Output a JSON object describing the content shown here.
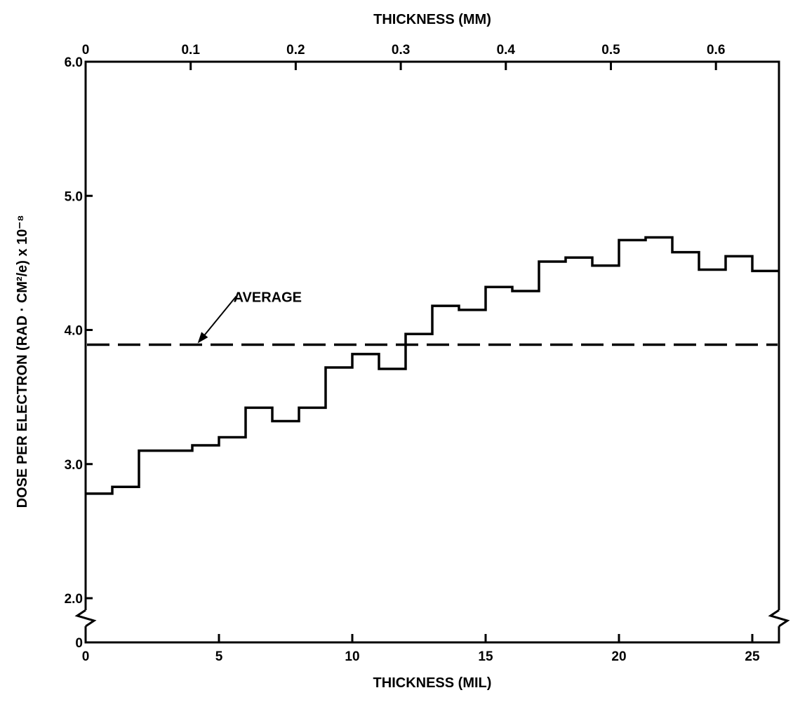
{
  "chart_data": {
    "type": "line",
    "step": true,
    "xlabel": "THICKNESS (MIL)",
    "x2label": "THICKNESS (MM)",
    "ylabel": "DOSE PER ELECTRON (RAD · CM²/e) x 10⁻⁸",
    "xlim": [
      0,
      26
    ],
    "x2lim": [
      0,
      0.66
    ],
    "ylim": [
      2.0,
      6.0
    ],
    "xticks": [
      0,
      5,
      10,
      15,
      20,
      25
    ],
    "xtick_labels": [
      "0",
      "5",
      "10",
      "15",
      "20",
      "25"
    ],
    "x2ticks": [
      0,
      0.1,
      0.2,
      0.3,
      0.4,
      0.5,
      0.6
    ],
    "x2tick_labels": [
      "0",
      "0.1",
      "0.2",
      "0.3",
      "0.4",
      "0.5",
      "0.6"
    ],
    "yticks": [
      2.0,
      3.0,
      4.0,
      5.0,
      6.0
    ],
    "ytick_labels": [
      "2.0",
      "3.0",
      "4.0",
      "5.0",
      "6.0"
    ],
    "y_break_label": "0",
    "grid": false,
    "series": [
      {
        "bins": [
          [
            0,
            1,
            2.78
          ],
          [
            1,
            2,
            2.83
          ],
          [
            2,
            4,
            3.1
          ],
          [
            4,
            5,
            3.14
          ],
          [
            5,
            6,
            3.2
          ],
          [
            6,
            7,
            3.42
          ],
          [
            7,
            8,
            3.32
          ],
          [
            8,
            9,
            3.42
          ],
          [
            9,
            10,
            3.72
          ],
          [
            10,
            11,
            3.82
          ],
          [
            11,
            12,
            3.71
          ],
          [
            12,
            13,
            3.97
          ],
          [
            13,
            14,
            4.18
          ],
          [
            14,
            15,
            4.15
          ],
          [
            15,
            16,
            4.32
          ],
          [
            16,
            17,
            4.29
          ],
          [
            17,
            18,
            4.51
          ],
          [
            18,
            19,
            4.54
          ],
          [
            19,
            20,
            4.48
          ],
          [
            20,
            21,
            4.67
          ],
          [
            21,
            22,
            4.69
          ],
          [
            22,
            23,
            4.58
          ],
          [
            23,
            24,
            4.45
          ],
          [
            24,
            25,
            4.55
          ],
          [
            25,
            26,
            4.44
          ]
        ]
      },
      {
        "name": "AVERAGE",
        "style": "dashed",
        "values": [
          3.89,
          3.89
        ]
      }
    ],
    "annotations": [
      {
        "text": "AVERAGE",
        "target_x": 4.2,
        "target_y": 3.89
      }
    ]
  }
}
